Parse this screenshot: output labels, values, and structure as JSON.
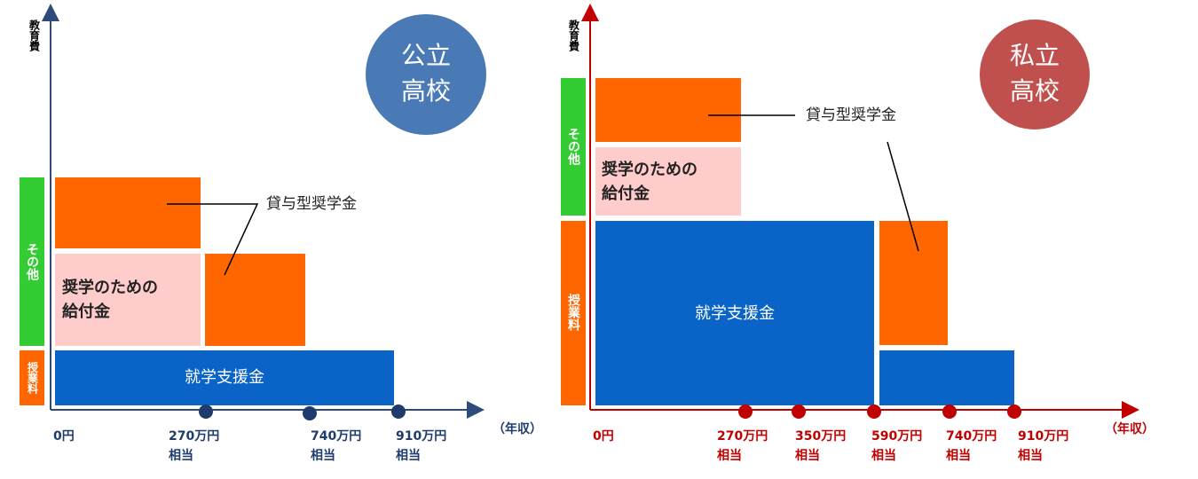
{
  "left": {
    "axis_label": "教育費",
    "badge": [
      "公立",
      "高校"
    ],
    "side_labels": {
      "other": "その他",
      "tuition": "授業料"
    },
    "benefit": [
      "奨学のための",
      "給付金"
    ],
    "support": "就学支援金",
    "loan": "貸与型奨学金",
    "incomes": [
      {
        "amount": "0円"
      },
      {
        "amount": "270万円",
        "note": "相当"
      },
      {
        "amount": "740万円",
        "note": "相当"
      },
      {
        "amount": "910万円",
        "note": "相当"
      }
    ],
    "x_axis_label": "（年収）"
  },
  "right": {
    "axis_label": "教育費",
    "badge": [
      "私立",
      "高校"
    ],
    "side_labels": {
      "other": "その他",
      "tuition": "授業料"
    },
    "benefit": [
      "奨学のための",
      "給付金"
    ],
    "support": "就学支援金",
    "loan": "貸与型奨学金",
    "incomes": [
      {
        "amount": "0円"
      },
      {
        "amount": "270万円",
        "note": "相当"
      },
      {
        "amount": "350万円",
        "note": "相当"
      },
      {
        "amount": "590万円",
        "note": "相当"
      },
      {
        "amount": "740万円",
        "note": "相当"
      },
      {
        "amount": "910万円",
        "note": "相当"
      }
    ],
    "x_axis_label": "（年収）"
  }
}
